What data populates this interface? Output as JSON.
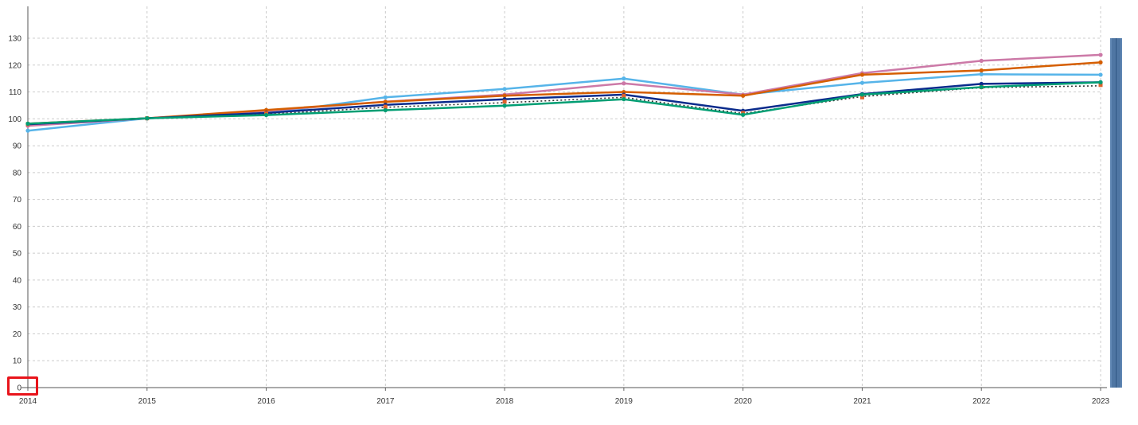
{
  "chart_data": {
    "type": "line",
    "title": "",
    "xlabel": "",
    "ylabel": "",
    "x": [
      "2014",
      "2015",
      "2016",
      "2017",
      "2018",
      "2019",
      "2020",
      "2021",
      "2022",
      "2023"
    ],
    "ylim": [
      0,
      130
    ],
    "yticks": [
      0,
      10,
      20,
      30,
      40,
      50,
      60,
      70,
      80,
      90,
      100,
      110,
      120,
      130
    ],
    "grid": true,
    "legend": "none",
    "series": [
      {
        "color": "#56b4e9",
        "style": "solid",
        "values": [
          95.6,
          100.2,
          101.9,
          108.0,
          111.1,
          115.0,
          109.0,
          113.4,
          116.6,
          116.4
        ]
      },
      {
        "color": "#cc79a7",
        "style": "solid",
        "values": [
          97.4,
          100.2,
          103.0,
          106.4,
          109.0,
          113.2,
          109.0,
          117.0,
          121.6,
          123.8
        ]
      },
      {
        "color": "#d55e00",
        "style": "solid",
        "values": [
          98.2,
          100.2,
          103.3,
          106.3,
          108.6,
          110.0,
          108.6,
          116.4,
          118.0,
          121.0
        ]
      },
      {
        "color": "#0a2b8c",
        "style": "solid",
        "values": [
          98.0,
          100.2,
          102.2,
          105.2,
          107.3,
          109.0,
          103.0,
          109.2,
          113.0,
          113.6
        ]
      },
      {
        "color": "#333333",
        "style": "dotted",
        "values": [
          98.0,
          100.2,
          101.7,
          104.3,
          106.0,
          108.0,
          102.0,
          108.3,
          111.6,
          112.3
        ]
      },
      {
        "color": "#e0622b",
        "style": "marker",
        "values": [
          98.0,
          100.2,
          102.0,
          104.5,
          106.4,
          108.6,
          102.2,
          108.0,
          111.8,
          112.6
        ]
      },
      {
        "color": "#009e73",
        "style": "solid",
        "values": [
          98.2,
          100.2,
          101.4,
          103.2,
          104.9,
          107.3,
          101.5,
          109.0,
          111.8,
          113.6
        ]
      }
    ]
  },
  "annotations": {
    "highlight_label": "0",
    "highlight_color": "#e8141b"
  },
  "sidebar": {
    "color": "#4f76a3"
  }
}
